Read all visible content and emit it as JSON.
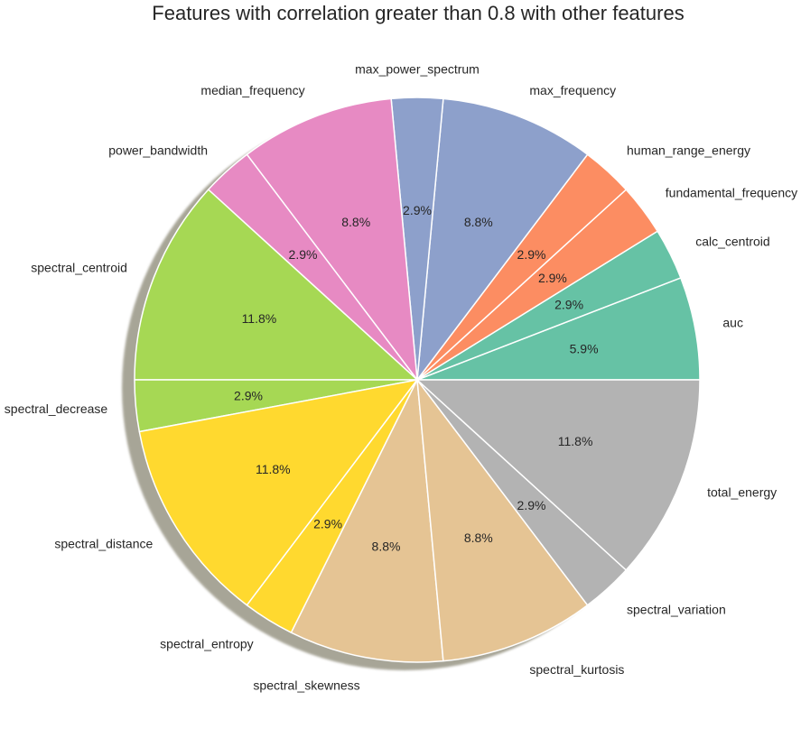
{
  "chart_data": {
    "type": "pie",
    "title": "Features with correlation greater than 0.8 with other features",
    "labels": [
      "auc",
      "calc_centroid",
      "fundamental_frequency",
      "human_range_energy",
      "max_frequency",
      "max_power_spectrum",
      "median_frequency",
      "power_bandwidth",
      "spectral_centroid",
      "spectral_decrease",
      "spectral_distance",
      "spectral_entropy",
      "spectral_skewness",
      "spectral_kurtosis",
      "spectral_variation",
      "total_energy"
    ],
    "values": [
      2,
      1,
      1,
      1,
      3,
      1,
      3,
      1,
      4,
      1,
      4,
      1,
      3,
      3,
      1,
      4
    ],
    "percent_labels": [
      "5.9%",
      "2.9%",
      "2.9%",
      "2.9%",
      "8.8%",
      "2.9%",
      "8.8%",
      "2.9%",
      "11.8%",
      "2.9%",
      "11.8%",
      "2.9%",
      "8.8%",
      "8.8%",
      "2.9%",
      "11.8%"
    ],
    "colors": [
      "#66c2a5",
      "#66c2a5",
      "#fc8d62",
      "#fc8d62",
      "#8da0cb",
      "#8da0cb",
      "#e78ac3",
      "#e78ac3",
      "#a6d854",
      "#a6d854",
      "#ffd92f",
      "#ffd92f",
      "#e5c494",
      "#e5c494",
      "#b3b3b3",
      "#b3b3b3"
    ],
    "start_angle_deg": 0,
    "direction": "counterclockwise",
    "shadow": true,
    "edge_color": "#ffffff"
  }
}
